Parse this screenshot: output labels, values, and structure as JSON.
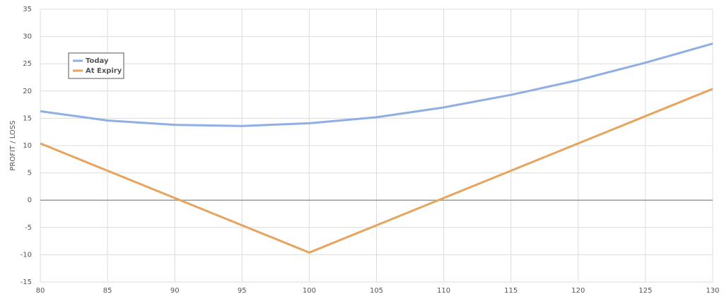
{
  "chart_data": {
    "type": "line",
    "y_label": "PROFIT / LOSS",
    "x": [
      80,
      85,
      90,
      95,
      100,
      105,
      110,
      115,
      120,
      125,
      130
    ],
    "series": [
      {
        "name": "Today",
        "color": "#8eaee4",
        "values": [
          16.3,
          14.6,
          13.8,
          13.6,
          14.1,
          15.2,
          17.0,
          19.3,
          22.0,
          25.2,
          28.7
        ]
      },
      {
        "name": "At Expiry",
        "color": "#e6a55e",
        "values": [
          10.4,
          5.4,
          0.4,
          -4.6,
          -9.6,
          -4.6,
          0.4,
          5.4,
          10.4,
          15.4,
          20.4
        ]
      }
    ],
    "xlim": [
      80,
      130
    ],
    "xticks": [
      80,
      85,
      90,
      95,
      100,
      105,
      110,
      115,
      120,
      125,
      130
    ],
    "ylim": [
      -15,
      35
    ],
    "yticks": [
      -15,
      -10,
      -5,
      0,
      5,
      10,
      15,
      20,
      25,
      30,
      35
    ],
    "grid": true,
    "legend": "upper-left"
  }
}
